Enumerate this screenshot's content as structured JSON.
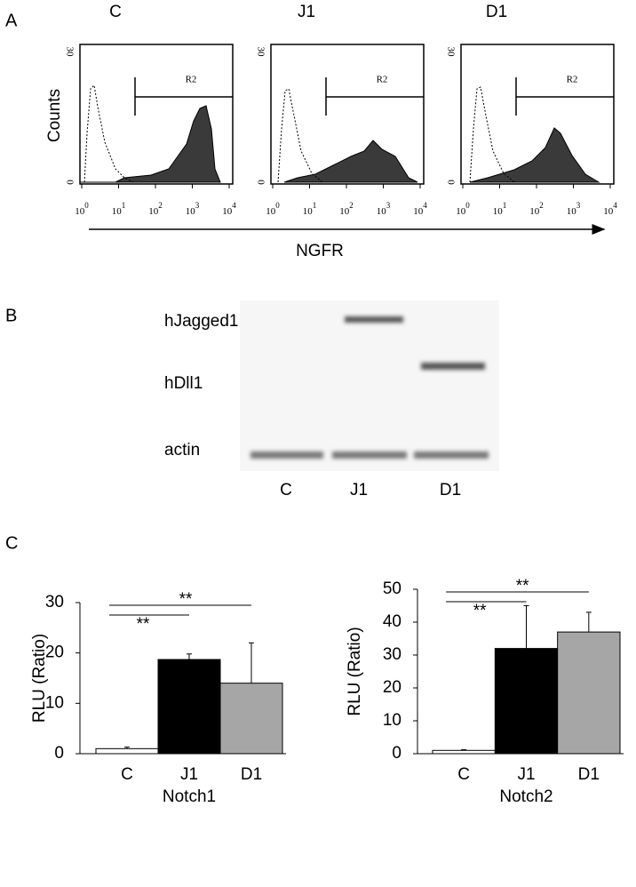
{
  "panel_labels": [
    "A",
    "B",
    "C"
  ],
  "flow": {
    "ylabel": "Counts",
    "xlabel": "NGFR",
    "gate": "R2",
    "yticks": [
      "0",
      "30"
    ],
    "xticks": [
      {
        "base": "10",
        "exp": "0"
      },
      {
        "base": "10",
        "exp": "1"
      },
      {
        "base": "10",
        "exp": "2"
      },
      {
        "base": "10",
        "exp": "3"
      },
      {
        "base": "10",
        "exp": "4"
      }
    ],
    "panels": [
      {
        "title": "C"
      },
      {
        "title": "J1"
      },
      {
        "title": "D1"
      }
    ]
  },
  "blot": {
    "rows": [
      "hJagged1",
      "hDll1",
      "actin"
    ],
    "lanes": [
      "C",
      "J1",
      "D1"
    ]
  },
  "chart_data": [
    {
      "type": "bar",
      "categories": [
        "C",
        "J1",
        "D1"
      ],
      "xlabel": "Notch1",
      "ylabel": "RLU (Ratio)",
      "values": [
        1,
        18.7,
        14
      ],
      "errors": [
        0.3,
        1.1,
        8
      ],
      "colors": [
        "#ffffff",
        "#000000",
        "#a6a6a6"
      ],
      "ylim": [
        0,
        30
      ],
      "yticks": [
        0,
        10,
        20,
        30
      ],
      "annotations": [
        "**",
        "**"
      ]
    },
    {
      "type": "bar",
      "categories": [
        "C",
        "J1",
        "D1"
      ],
      "xlabel": "Notch2",
      "ylabel": "RLU (Ratio)",
      "values": [
        1,
        32,
        37
      ],
      "errors": [
        0.2,
        13,
        6
      ],
      "colors": [
        "#ffffff",
        "#000000",
        "#a6a6a6"
      ],
      "ylim": [
        0,
        50
      ],
      "yticks": [
        0,
        10,
        20,
        30,
        40,
        50
      ],
      "annotations": [
        "**",
        "**"
      ]
    }
  ]
}
